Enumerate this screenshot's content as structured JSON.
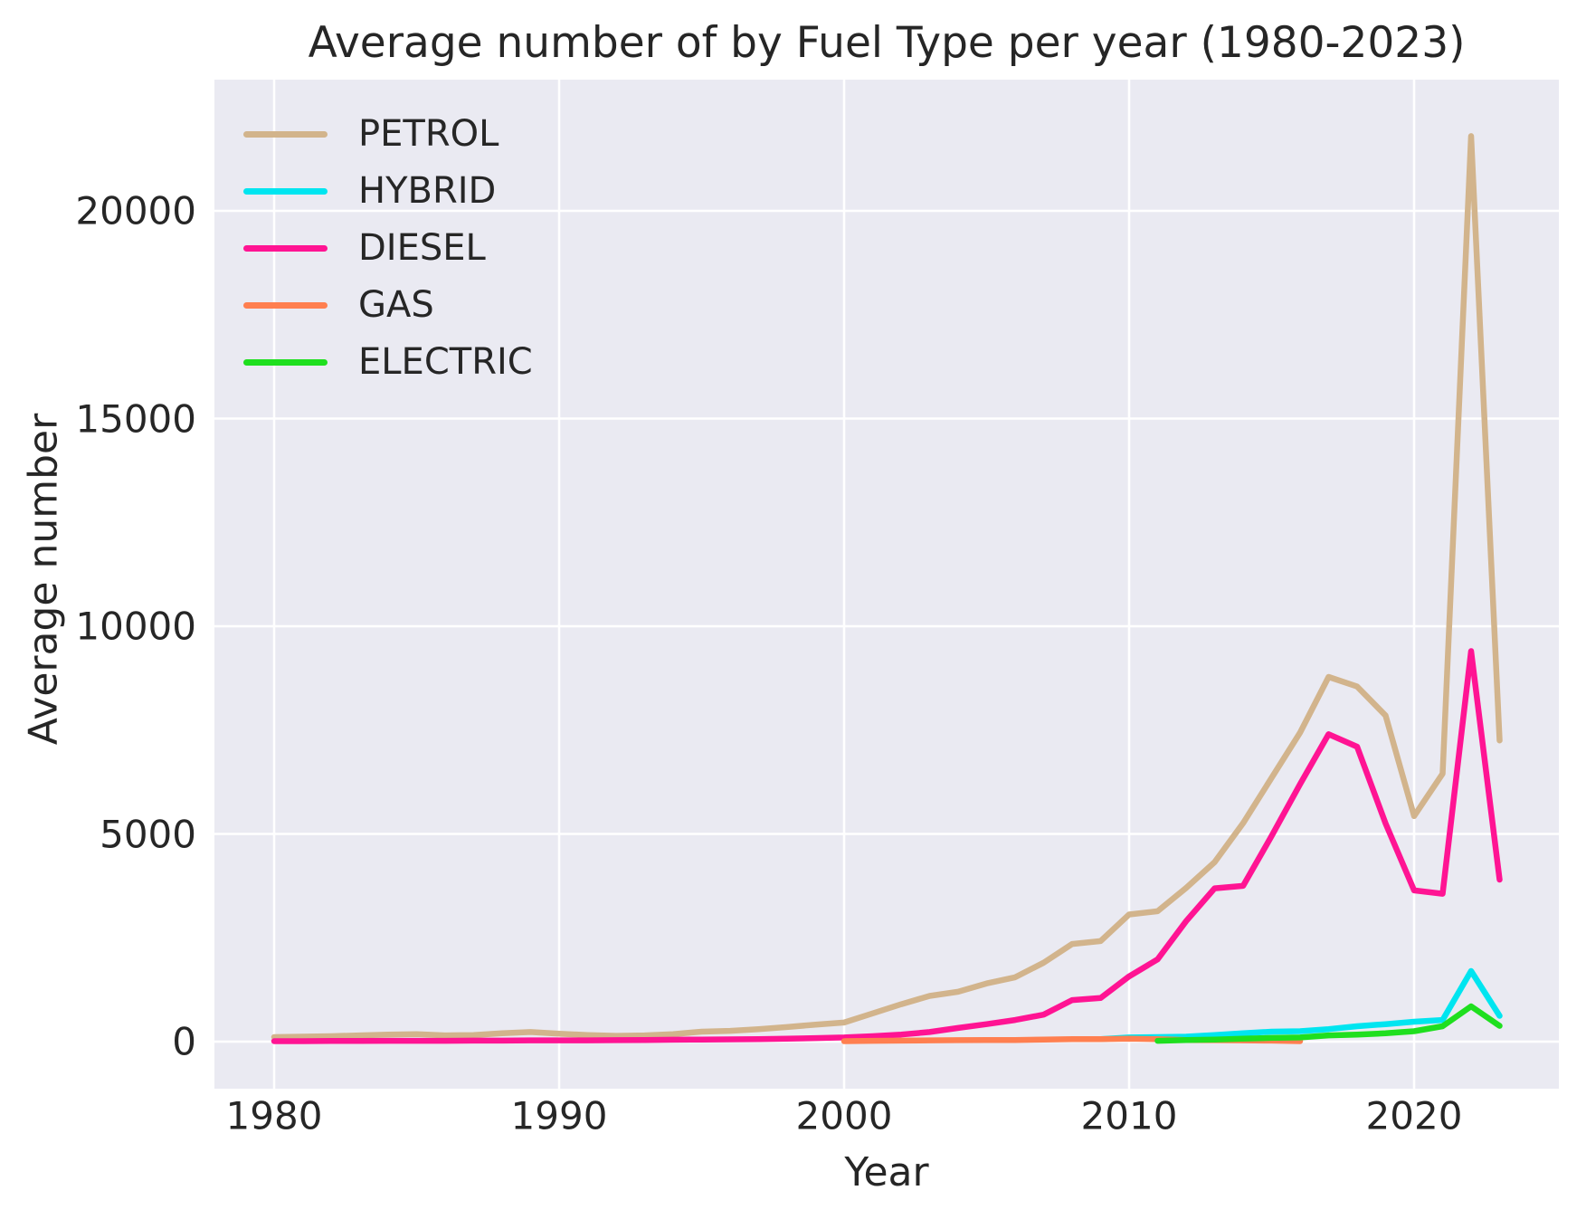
{
  "title": "Average number of by Fuel Type per year (1980-2023)",
  "axes": {
    "xlabel": "Year",
    "ylabel": "Average number"
  },
  "legend": {
    "position": "upper left",
    "entries": [
      "PETROL",
      "HYBRID",
      "DIESEL",
      "GAS",
      "ELECTRIC"
    ]
  },
  "colors": {
    "plot_background": "#eaeaf2",
    "gridline": "#ffffff",
    "text": "#262626",
    "petrol": "#d2b48c",
    "hybrid": "#00e5f0",
    "diesel": "#ff1493",
    "gas": "#ff7f50",
    "electric": "#1fdf1f"
  },
  "chart_data": {
    "type": "line",
    "title": "Average number of by Fuel Type per year (1980-2023)",
    "xlabel": "Year",
    "ylabel": "Average number",
    "x_ticks": [
      1980,
      1990,
      2000,
      2010,
      2020
    ],
    "y_ticks": [
      0,
      5000,
      10000,
      15000,
      20000
    ],
    "xlim": [
      1977.9,
      2025.1
    ],
    "ylim": [
      -1130,
      23160
    ],
    "grid": true,
    "legend_position": "upper left",
    "series": [
      {
        "name": "PETROL",
        "color": "#d2b48c",
        "x": [
          1980,
          1981,
          1982,
          1983,
          1984,
          1985,
          1986,
          1987,
          1988,
          1989,
          1990,
          1991,
          1992,
          1993,
          1994,
          1995,
          1996,
          1997,
          1998,
          1999,
          2000,
          2001,
          2002,
          2003,
          2004,
          2005,
          2006,
          2007,
          2008,
          2009,
          2010,
          2011,
          2012,
          2013,
          2014,
          2015,
          2016,
          2017,
          2018,
          2019,
          2020,
          2021,
          2022,
          2023
        ],
        "values": [
          110,
          120,
          130,
          150,
          170,
          180,
          150,
          160,
          200,
          230,
          190,
          160,
          140,
          150,
          180,
          240,
          260,
          300,
          350,
          410,
          460,
          680,
          900,
          1100,
          1200,
          1400,
          1550,
          1900,
          2350,
          2420,
          3060,
          3140,
          3700,
          4320,
          5260,
          6350,
          7440,
          8780,
          8550,
          7850,
          5430,
          6450,
          21800,
          7250
        ]
      },
      {
        "name": "HYBRID",
        "color": "#00e5f0",
        "x": [
          2009,
          2010,
          2011,
          2012,
          2013,
          2014,
          2015,
          2016,
          2017,
          2018,
          2019,
          2020,
          2021,
          2022,
          2023
        ],
        "values": [
          60,
          100,
          110,
          120,
          160,
          200,
          240,
          250,
          300,
          370,
          420,
          480,
          520,
          1700,
          620
        ]
      },
      {
        "name": "DIESEL",
        "color": "#ff1493",
        "x": [
          1980,
          1981,
          1982,
          1983,
          1984,
          1985,
          1986,
          1987,
          1988,
          1989,
          1990,
          1991,
          1992,
          1993,
          1994,
          1995,
          1996,
          1997,
          1998,
          1999,
          2000,
          2001,
          2002,
          2003,
          2004,
          2005,
          2006,
          2007,
          2008,
          2009,
          2010,
          2011,
          2012,
          2013,
          2014,
          2015,
          2016,
          2017,
          2018,
          2019,
          2020,
          2021,
          2022,
          2023
        ],
        "values": [
          10,
          10,
          15,
          15,
          20,
          20,
          20,
          25,
          25,
          30,
          30,
          30,
          35,
          40,
          45,
          50,
          55,
          60,
          70,
          85,
          100,
          130,
          170,
          230,
          330,
          420,
          520,
          650,
          1000,
          1050,
          1570,
          1980,
          2900,
          3690,
          3750,
          4950,
          6200,
          7400,
          7100,
          5250,
          3640,
          3560,
          9400,
          3900
        ]
      },
      {
        "name": "GAS",
        "color": "#ff7f50",
        "x": [
          2000,
          2001,
          2002,
          2003,
          2004,
          2005,
          2006,
          2007,
          2008,
          2009,
          2010,
          2011,
          2012,
          2013,
          2014,
          2015,
          2016
        ],
        "values": [
          10,
          20,
          25,
          30,
          35,
          40,
          40,
          50,
          60,
          60,
          70,
          60,
          40,
          35,
          30,
          25,
          10
        ]
      },
      {
        "name": "ELECTRIC",
        "color": "#1fdf1f",
        "x": [
          2011,
          2012,
          2013,
          2014,
          2015,
          2016,
          2017,
          2018,
          2019,
          2020,
          2021,
          2022,
          2023
        ],
        "values": [
          20,
          40,
          50,
          70,
          90,
          100,
          150,
          170,
          200,
          250,
          370,
          850,
          380
        ]
      }
    ]
  }
}
